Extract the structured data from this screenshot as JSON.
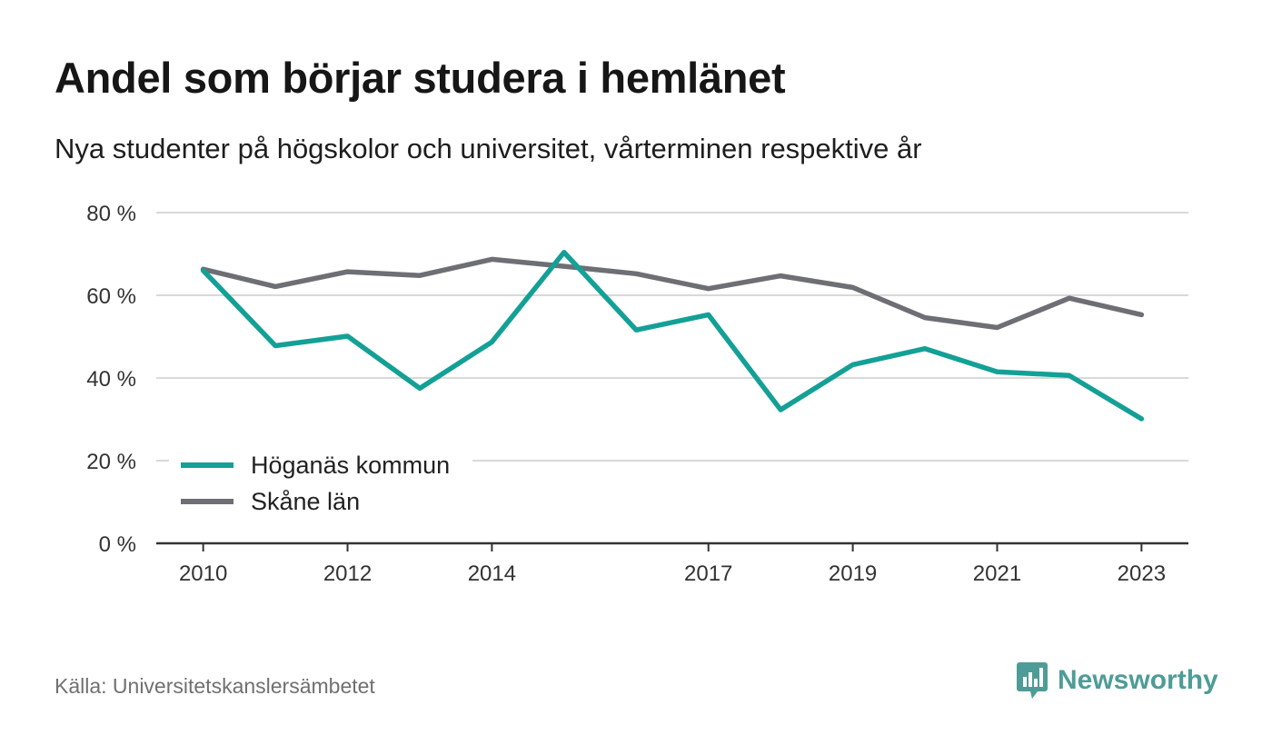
{
  "header": {
    "title": "Andel som börjar studera i hemlänet",
    "subtitle": "Nya studenter på högskolor och universitet, vårterminen respektive år"
  },
  "footer": {
    "source": "Källa: Universitetskanslersämbetet",
    "brand": "Newsworthy",
    "brand_icon": "bar-chart-speech-bubble-icon",
    "brand_color": "#4e9c97"
  },
  "chart_data": {
    "type": "line",
    "title": "Andel som börjar studera i hemlänet",
    "subtitle": "Nya studenter på högskolor och universitet, vårterminen respektive år",
    "x": [
      2010,
      2011,
      2012,
      2013,
      2014,
      2015,
      2016,
      2017,
      2018,
      2019,
      2020,
      2021,
      2022,
      2023
    ],
    "x_ticks": [
      2010,
      2012,
      2014,
      2017,
      2019,
      2021,
      2023
    ],
    "xlim": [
      2009.35,
      2023.65
    ],
    "ylim": [
      0,
      80
    ],
    "y_ticks": [
      0,
      20,
      40,
      60,
      80
    ],
    "y_tick_suffix": " %",
    "grid": true,
    "legend_position": "bottom-left",
    "series": [
      {
        "name": "Höganäs kommun",
        "color": "#13a096",
        "values": [
          66.0,
          47.8,
          50.1,
          37.5,
          48.7,
          70.4,
          51.6,
          55.3,
          32.3,
          43.2,
          47.1,
          41.5,
          40.6,
          30.1
        ]
      },
      {
        "name": "Skåne län",
        "color": "#6e6e75",
        "values": [
          66.3,
          62.1,
          65.7,
          64.8,
          68.7,
          67.0,
          65.2,
          61.6,
          64.7,
          61.9,
          54.6,
          52.2,
          59.3,
          55.3
        ]
      }
    ]
  }
}
